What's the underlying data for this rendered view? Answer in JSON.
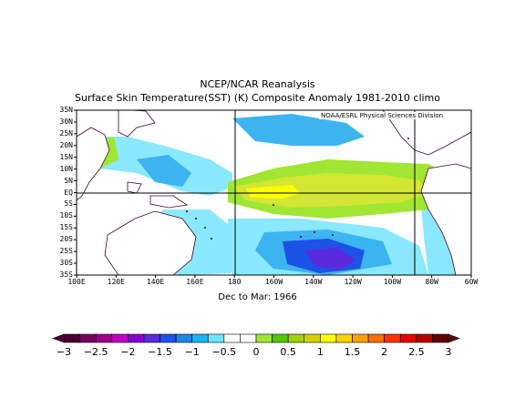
{
  "title": {
    "line1": "NCEP/NCAR Reanalysis",
    "line2": "Surface Skin Temperature(SST) (K) Composite Anomaly 1981-2010 climo"
  },
  "credit": "NOAA/ESRL Physical Sciences Division",
  "period": "Dec to Mar: 1966",
  "map": {
    "lon_labels": [
      "100E",
      "120E",
      "140E",
      "160E",
      "180",
      "160W",
      "140W",
      "120W",
      "100W",
      "80W",
      "60W"
    ],
    "lat_labels": [
      "35N",
      "30N",
      "25N",
      "20N",
      "15N",
      "10N",
      "5N",
      "EQ",
      "5S",
      "10S",
      "15S",
      "20S",
      "25S",
      "30S",
      "35S"
    ],
    "lon_range": [
      "100E",
      "60W"
    ],
    "lat_range": [
      "35S",
      "35N"
    ],
    "box": {
      "lon_west": "170W",
      "lon_east": "90W"
    },
    "equator_line": "EQ"
  },
  "colorbar": {
    "tick_labels": [
      "-3",
      "-2.5",
      "-2",
      "-1.5",
      "-1",
      "-0.5",
      "0",
      "0.5",
      "1",
      "1.5",
      "2",
      "2.5",
      "3"
    ],
    "colors": [
      "#4a0030",
      "#7a0060",
      "#a0008c",
      "#c000c0",
      "#8a00d0",
      "#5a2adc",
      "#1c52e6",
      "#1c86e6",
      "#1cb4f0",
      "#6ae6ff",
      "#ffffff",
      "#ffffff",
      "#a0e632",
      "#50c800",
      "#a0d200",
      "#d2d200",
      "#ffff00",
      "#ffd200",
      "#ffa000",
      "#ff6e00",
      "#ff3200",
      "#e60000",
      "#b40000",
      "#640000"
    ]
  }
}
